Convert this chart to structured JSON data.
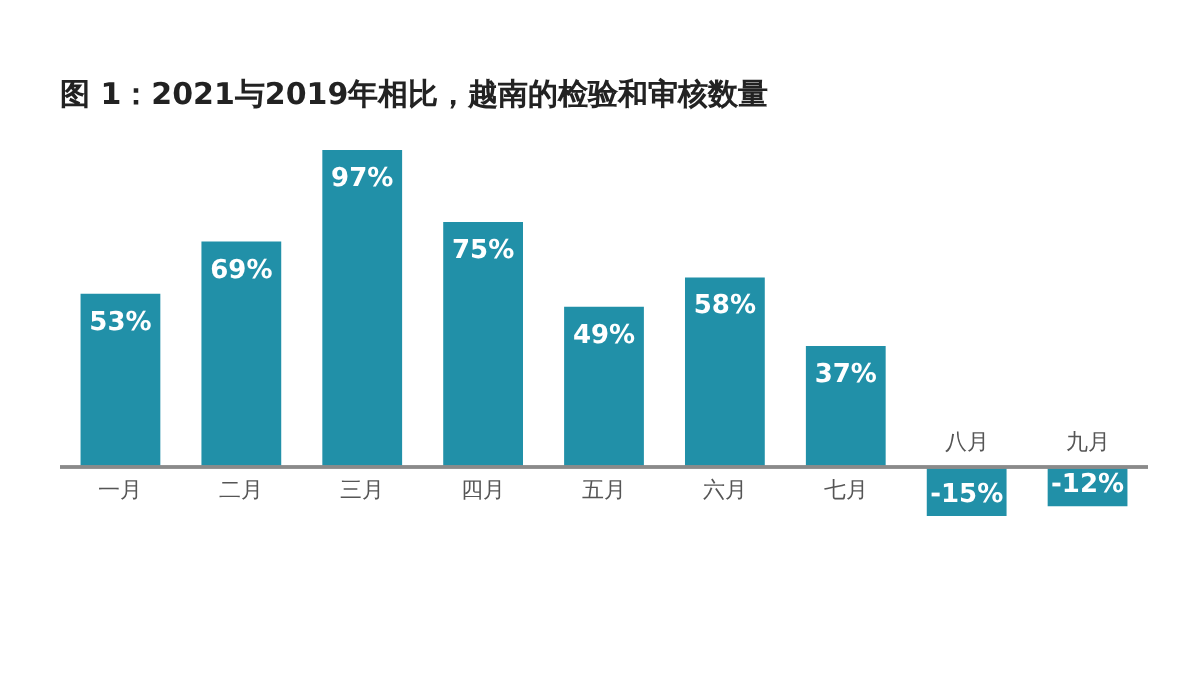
{
  "chart_data": {
    "type": "bar",
    "title": "图 1：2021与2019年相比，越南的检验和审核数量",
    "categories": [
      "一月",
      "二月",
      "三月",
      "四月",
      "五月",
      "六月",
      "七月",
      "八月",
      "九月"
    ],
    "values": [
      53,
      69,
      97,
      75,
      49,
      58,
      37,
      -15,
      -12
    ],
    "value_labels": [
      "53%",
      "69%",
      "97%",
      "75%",
      "49%",
      "58%",
      "37%",
      "-15%",
      "-12%"
    ],
    "color": "#2190a8"
  }
}
